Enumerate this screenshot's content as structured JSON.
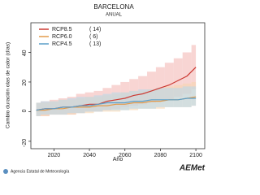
{
  "chart_data": {
    "type": "line",
    "title": "BARCELONA",
    "subtitle": "ANUAL",
    "y_label": "Cambio duración olas de calor (días)",
    "x_label": "Año",
    "footer": "Agencia Estatal de Meteorología",
    "logo": "AEMet",
    "x": [
      2010,
      2015,
      2020,
      2025,
      2030,
      2035,
      2040,
      2045,
      2050,
      2055,
      2060,
      2065,
      2070,
      2075,
      2080,
      2085,
      2090,
      2095,
      2100
    ],
    "xlim": [
      2007,
      2105
    ],
    "xticks": [
      2020,
      2040,
      2060,
      2080,
      2100
    ],
    "ylim": [
      -25,
      60
    ],
    "yticks": [
      -20,
      0,
      20,
      40
    ],
    "legend": "upper left",
    "series": [
      {
        "name": "RCP8.5",
        "count_label": "( 14)",
        "color": "#cc3a33",
        "band_color": "#f3b9b6",
        "values": [
          1,
          2,
          2,
          3,
          3,
          4,
          5,
          5,
          7,
          8,
          9,
          11,
          12,
          14,
          16,
          18,
          21,
          24,
          30
        ],
        "lower": [
          -3,
          -3,
          -2,
          -2,
          -2,
          -1,
          0,
          0,
          1,
          2,
          3,
          4,
          5,
          6,
          7,
          8,
          10,
          12,
          15
        ],
        "upper": [
          6,
          7,
          8,
          9,
          10,
          12,
          13,
          14,
          16,
          18,
          20,
          22,
          24,
          27,
          30,
          33,
          36,
          40,
          45
        ]
      },
      {
        "name": "RCP6.0",
        "count_label": "( 6)",
        "color": "#e39a4a",
        "band_color": "#f6d6b0",
        "values": [
          1,
          1,
          2,
          2,
          3,
          3,
          3,
          4,
          4,
          5,
          5,
          6,
          6,
          7,
          7,
          8,
          8,
          9,
          10
        ],
        "lower": [
          -3,
          -3,
          -2,
          -2,
          -2,
          -1,
          -1,
          0,
          0,
          0,
          1,
          1,
          2,
          2,
          2,
          3,
          3,
          3,
          4
        ],
        "upper": [
          6,
          6,
          7,
          8,
          8,
          9,
          10,
          10,
          11,
          12,
          13,
          14,
          14,
          15,
          16,
          17,
          18,
          19,
          20
        ]
      },
      {
        "name": "RCP4.5",
        "count_label": "( 13)",
        "color": "#5b9fc9",
        "band_color": "#b9d8ea",
        "values": [
          1,
          2,
          2,
          3,
          3,
          4,
          4,
          5,
          6,
          6,
          6,
          7,
          7,
          8,
          8,
          8,
          8,
          9,
          9
        ],
        "lower": [
          -3,
          -2,
          -2,
          -2,
          -1,
          -1,
          0,
          0,
          1,
          1,
          1,
          2,
          2,
          2,
          3,
          3,
          3,
          3,
          4
        ],
        "upper": [
          6,
          7,
          7,
          8,
          9,
          10,
          10,
          11,
          12,
          13,
          13,
          14,
          15,
          15,
          16,
          16,
          16,
          17,
          17
        ]
      }
    ]
  }
}
